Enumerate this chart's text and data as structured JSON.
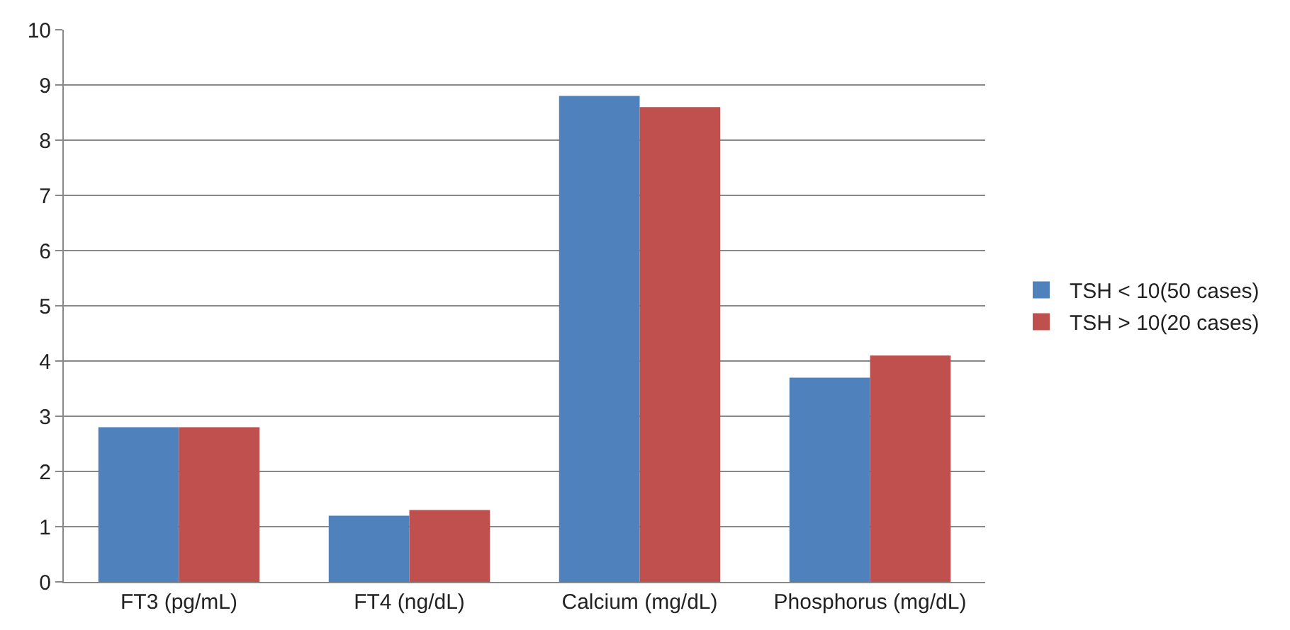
{
  "chart_data": {
    "type": "bar",
    "categories": [
      "FT3 (pg/mL)",
      "FT4 (ng/dL)",
      "Calcium (mg/dL)",
      "Phosphorus (mg/dL)"
    ],
    "series": [
      {
        "name": "TSH < 10(50 cases)",
        "color": "#4f81bd",
        "values": [
          2.8,
          1.2,
          8.8,
          3.7
        ]
      },
      {
        "name": "TSH > 10(20 cases)",
        "color": "#c0504d",
        "values": [
          2.8,
          1.3,
          8.6,
          4.1
        ]
      }
    ],
    "ylim": [
      0,
      10
    ],
    "yticks": [
      0,
      1,
      2,
      3,
      4,
      5,
      6,
      7,
      8,
      9,
      10
    ],
    "grid": "y",
    "legend": "right"
  }
}
